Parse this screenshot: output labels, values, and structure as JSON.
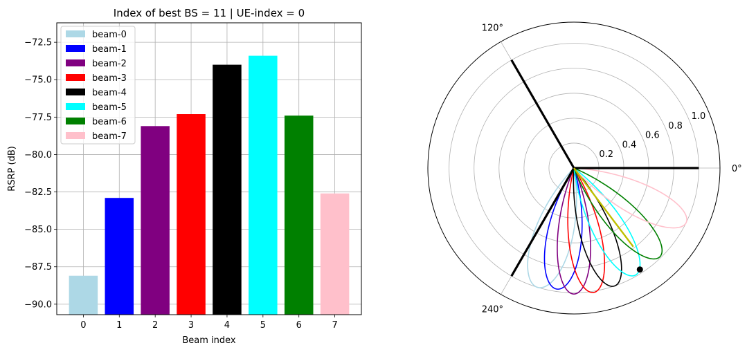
{
  "chart_data": [
    {
      "type": "bar",
      "title": "Index of best BS = 11 | UE-index = 0",
      "xlabel": "Beam index",
      "ylabel": "RSRP (dB)",
      "categories": [
        "0",
        "1",
        "2",
        "3",
        "4",
        "5",
        "6",
        "7"
      ],
      "values": [
        -88.1,
        -82.9,
        -78.1,
        -77.3,
        -74.0,
        -73.4,
        -77.4,
        -82.6
      ],
      "colors": [
        "#add8e6",
        "#0000ff",
        "#800080",
        "#ff0000",
        "#000000",
        "#00ffff",
        "#008000",
        "#ffc0cb"
      ],
      "legend": [
        "beam-0",
        "beam-1",
        "beam-2",
        "beam-3",
        "beam-4",
        "beam-5",
        "beam-6",
        "beam-7"
      ],
      "legend_position": "upper-left",
      "ylim": [
        -90.7,
        -71.2
      ],
      "yticks": [
        "−72.5",
        "−75.0",
        "−77.5",
        "−80.0",
        "−82.5",
        "−85.0",
        "−87.5",
        "−90.0"
      ],
      "ytick_values": [
        -72.5,
        -75.0,
        -77.5,
        -80.0,
        -82.5,
        -85.0,
        -87.5,
        -90.0
      ],
      "grid": true
    },
    {
      "type": "polar",
      "rticks": [
        "0.2",
        "0.4",
        "0.6",
        "0.8",
        "1.0"
      ],
      "rtick_values": [
        0.2,
        0.4,
        0.6,
        0.8,
        1.0
      ],
      "theta_labels": [
        "0°",
        "120°",
        "240°"
      ],
      "theta_label_angles": [
        0,
        120,
        240
      ],
      "sector_lines": [
        {
          "angle_deg": 0,
          "r": 1.0,
          "color": "#000000"
        },
        {
          "angle_deg": 120,
          "r": 1.0,
          "color": "#000000"
        },
        {
          "angle_deg": 240,
          "r": 1.0,
          "color": "#000000"
        }
      ],
      "beams": [
        {
          "name": "beam-0",
          "center_deg": 253,
          "peak": 1.0,
          "width_deg": 13,
          "color": "#add8e6"
        },
        {
          "name": "beam-1",
          "center_deg": 262,
          "peak": 0.98,
          "width_deg": 12,
          "color": "#0000ff"
        },
        {
          "name": "beam-2",
          "center_deg": 270,
          "peak": 1.01,
          "width_deg": 11,
          "color": "#800080"
        },
        {
          "name": "beam-3",
          "center_deg": 279,
          "peak": 1.01,
          "width_deg": 11,
          "color": "#ff0000"
        },
        {
          "name": "beam-4",
          "center_deg": 289,
          "peak": 1.0,
          "width_deg": 11,
          "color": "#000000"
        },
        {
          "name": "beam-5",
          "center_deg": 300,
          "peak": 0.99,
          "width_deg": 11,
          "color": "#00ffff"
        },
        {
          "name": "beam-6",
          "center_deg": 314,
          "peak": 0.99,
          "width_deg": 11,
          "color": "#008000"
        },
        {
          "name": "beam-7",
          "center_deg": 334,
          "peak": 1.0,
          "width_deg": 11,
          "color": "#ffc0cb"
        }
      ],
      "ue_direction": {
        "angle_deg": 307,
        "r": 0.79,
        "color": "#bfbf00"
      },
      "ue_point": {
        "angle_deg": 303,
        "r": 0.97,
        "color": "#000000"
      }
    }
  ]
}
